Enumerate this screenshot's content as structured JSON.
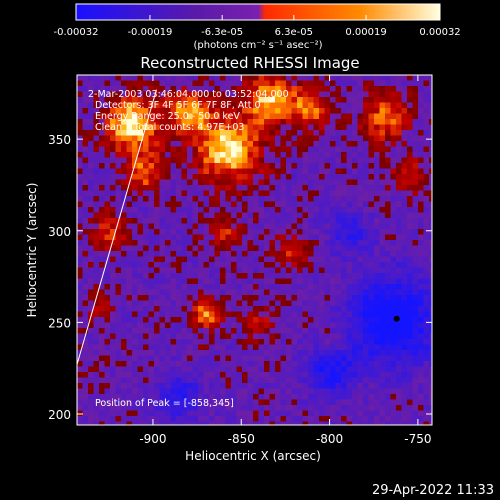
{
  "colorbar": {
    "tick_labels": [
      "-0.00032",
      "-0.00019",
      "-6.3e-05",
      "6.3e-05",
      "0.00019",
      "0.00032"
    ],
    "unit_label": "(photons cm⁻² s⁻¹ asec⁻²)",
    "range": [
      -0.00032,
      0.00032
    ],
    "colors": [
      "#1a10ff",
      "#5a1aa8",
      "#7a20b0",
      "#ff2a00",
      "#ff8a00",
      "#ffffe0"
    ]
  },
  "annotations": {
    "line1": "2-Mar-2003 03:46:04.000 to 03:52:04.000",
    "line2": "Detectors: 3F 4F 5F 6F 7F 8F, Att 0",
    "line3": "Energy Range: 25.0 - 50.0 keV",
    "line4": "Clean    Total counts: 4.97E+03",
    "peak": "Position of Peak = [-858,345]"
  },
  "timestamp": "29-Apr-2022 11:33",
  "chart_data": {
    "type": "heatmap",
    "title": "Reconstructed RHESSI Image",
    "xlabel": "Heliocentric X (arcsec)",
    "ylabel": "Heliocentric Y (arcsec)",
    "xlim": [
      -943,
      -742
    ],
    "ylim": [
      194,
      385
    ],
    "x_ticks": [
      -900,
      -850,
      -800,
      -750
    ],
    "y_ticks": [
      200,
      250,
      300,
      350
    ],
    "x_tick_labels": [
      "-900",
      "-850",
      "-800",
      "-750"
    ],
    "y_tick_labels": [
      "200",
      "250",
      "300",
      "350"
    ],
    "limb_line": [
      [
        -943,
        227
      ],
      [
        -898,
        377
      ]
    ],
    "peak_position": [
      -858,
      345
    ],
    "blobs": [
      {
        "x": -912,
        "y": 358,
        "r": 15,
        "value": 1.0
      },
      {
        "x": -858,
        "y": 345,
        "r": 18,
        "value": 0.95
      },
      {
        "x": -880,
        "y": 365,
        "r": 12,
        "value": 0.8
      },
      {
        "x": -835,
        "y": 372,
        "r": 13,
        "value": 0.85
      },
      {
        "x": -812,
        "y": 367,
        "r": 11,
        "value": 0.7
      },
      {
        "x": -905,
        "y": 332,
        "r": 10,
        "value": 0.6
      },
      {
        "x": -925,
        "y": 300,
        "r": 10,
        "value": 0.5
      },
      {
        "x": -870,
        "y": 255,
        "r": 8,
        "value": 0.75
      },
      {
        "x": -860,
        "y": 300,
        "r": 9,
        "value": 0.45
      },
      {
        "x": -822,
        "y": 290,
        "r": 9,
        "value": 0.45
      },
      {
        "x": -840,
        "y": 250,
        "r": 8,
        "value": 0.4
      },
      {
        "x": -770,
        "y": 362,
        "r": 14,
        "value": 0.6
      },
      {
        "x": -756,
        "y": 330,
        "r": 10,
        "value": 0.45
      },
      {
        "x": -930,
        "y": 260,
        "r": 9,
        "value": 0.3
      },
      {
        "x": -800,
        "y": 240,
        "r": 8,
        "value": 0.25
      }
    ],
    "cold_regions": [
      {
        "x": -765,
        "y": 252,
        "r": 24,
        "value": -1.0
      },
      {
        "x": -800,
        "y": 225,
        "r": 14,
        "value": -0.7
      },
      {
        "x": -885,
        "y": 210,
        "r": 12,
        "value": -0.6
      },
      {
        "x": -790,
        "y": 300,
        "r": 12,
        "value": -0.5
      }
    ]
  }
}
